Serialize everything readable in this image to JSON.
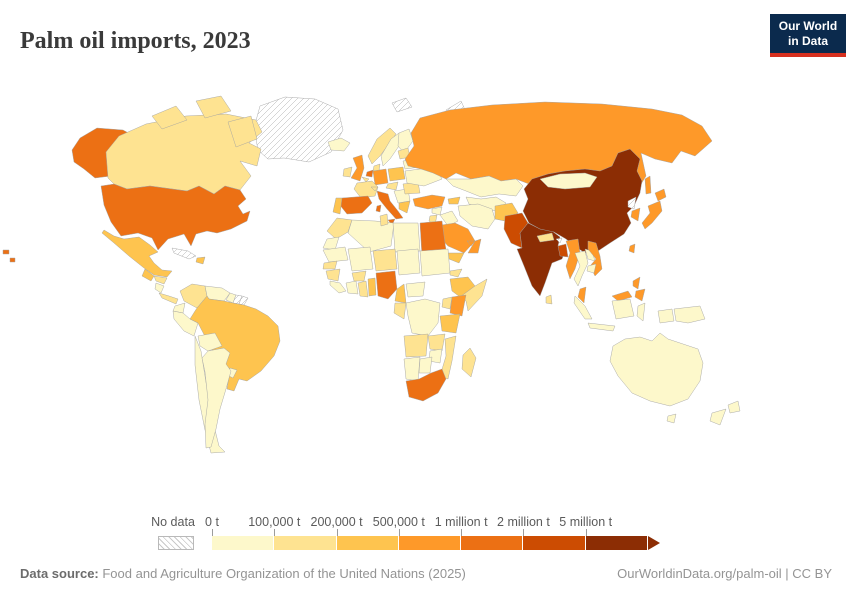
{
  "header": {
    "title": "Palm oil imports, 2023"
  },
  "logo": {
    "line1": "Our World",
    "line2": "in Data"
  },
  "legend": {
    "no_data_label": "No data",
    "tick_labels": [
      "0 t",
      "100,000 t",
      "200,000 t",
      "500,000 t",
      "1 million t",
      "2 million t",
      "5 million t"
    ],
    "bins": [
      {
        "id": "b1",
        "color": "#fdf8cb",
        "range": "0 t – 100,000 t"
      },
      {
        "id": "b2",
        "color": "#fee391",
        "range": "100,000 t – 200,000 t"
      },
      {
        "id": "b3",
        "color": "#fec44f",
        "range": "200,000 t – 500,000 t"
      },
      {
        "id": "b4",
        "color": "#fe9929",
        "range": "500,000 t – 1 million t"
      },
      {
        "id": "b5",
        "color": "#ec7014",
        "range": "1 million t – 2 million t"
      },
      {
        "id": "b6",
        "color": "#cc4c02",
        "range": "2 million t – 5 million t"
      },
      {
        "id": "b7",
        "color": "#8c2d04",
        "range": "≥ 5 million t"
      }
    ]
  },
  "footer": {
    "source_label": "Data source:",
    "source_text": " Food and Agriculture Organization of the United Nations (2025)",
    "credit": "OurWorldinData.org/palm-oil | CC BY"
  },
  "chart_data": {
    "type": "heatmap",
    "subtype": "world-choropleth",
    "title": "Palm oil imports, 2023",
    "unit": "tonnes",
    "no_data_label": "No data",
    "values": {
      "Greenland": "nodata",
      "Svalbard": "nodata",
      "Novaya Zemlya": "nodata",
      "United States": "b5",
      "Canada": "b2",
      "Mexico": "b3",
      "Guatemala": "b3",
      "Honduras": "b2",
      "Nicaragua": "b1",
      "Costa Rica & Panama": "b2",
      "Cuba": "nodata",
      "Dominican Republic": "b3",
      "Colombia": "b2",
      "Venezuela": "b1",
      "Guyana": "b1",
      "Suriname": "nodata",
      "French Guiana": "nodata",
      "Ecuador": "b1",
      "Peru": "b1",
      "Brazil": "b3",
      "Bolivia": "b1",
      "Paraguay": "b1",
      "Uruguay": "b1",
      "Chile": "b1",
      "Argentina": "b1",
      "Iceland": "b1",
      "United Kingdom": "b4",
      "Ireland": "b2",
      "Norway": "b2",
      "Sweden": "b1",
      "Finland": "b1",
      "Denmark": "b2",
      "Netherlands": "b5",
      "Belgium": "b2",
      "Germany": "b4",
      "France": "b2",
      "Spain": "b5",
      "Portugal": "b3",
      "Italy": "b5",
      "Switzerland": "b2",
      "Czechia & Austria": "b2",
      "Poland": "b3",
      "Balkans": "b1",
      "Greece": "b3",
      "Romania": "b2",
      "Ukraine": "b1",
      "Belarus": "b1",
      "Baltics": "b2",
      "Russia": "b4",
      "Kazakhstan": "b1",
      "Uzbekistan & Turkmenistan": "b1",
      "Caucasus": "b3",
      "Turkey": "b4",
      "Syria": "b1",
      "Iraq": "b1",
      "Iran": "b1",
      "Afghanistan": "b3",
      "Jordan & Israel": "b2",
      "Saudi Arabia": "b4",
      "Yemen": "b3",
      "Oman": "b4",
      "United Arab Emirates": "b4",
      "Morocco": "b2",
      "Western Sahara": "b1",
      "Algeria": "b1",
      "Tunisia": "b2",
      "Libya": "b1",
      "Egypt": "b5",
      "Mauritania": "b1",
      "Mali": "b1",
      "Niger": "b2",
      "Chad": "b1",
      "Sudan": "b1",
      "Eritrea": "b2",
      "Senegal": "b2",
      "Guinea": "b2",
      "Sierra Leone & Liberia": "b1",
      "Cote d'Ivoire": "b1",
      "Burkina Faso": "b2",
      "Ghana": "b2",
      "Togo & Benin": "b3",
      "Nigeria": "b5",
      "Cameroon": "b3",
      "Central African Republic": "b1",
      "Ethiopia": "b3",
      "Somalia": "b2",
      "Kenya": "b4",
      "Uganda": "b2",
      "Democratic Republic of Congo": "b1",
      "Gabon & Congo": "b2",
      "Tanzania": "b3",
      "Angola": "b2",
      "Zambia": "b2",
      "Mozambique": "b2",
      "Zimbabwe": "b1",
      "Namibia": "b1",
      "Botswana": "b1",
      "South Africa": "b5",
      "Madagascar": "b2",
      "Pakistan": "b6",
      "India": "b7",
      "Nepal": "b2",
      "Bhutan": "nodata",
      "Bangladesh": "b6",
      "Sri Lanka": "b2",
      "China": "b7",
      "Mongolia": "b1",
      "Taiwan": "b4",
      "North Korea": "nodata",
      "South Korea": "b4",
      "Japan": "b4",
      "Myanmar": "b4",
      "Thailand": "b1",
      "Laos": "b1",
      "Vietnam": "b4",
      "Cambodia": "b1",
      "Malaysia": "b4",
      "Indonesia": "b1",
      "Philippines": "b4",
      "Papua New Guinea": "b1",
      "Australia": "b1",
      "New Zealand": "b1"
    }
  }
}
